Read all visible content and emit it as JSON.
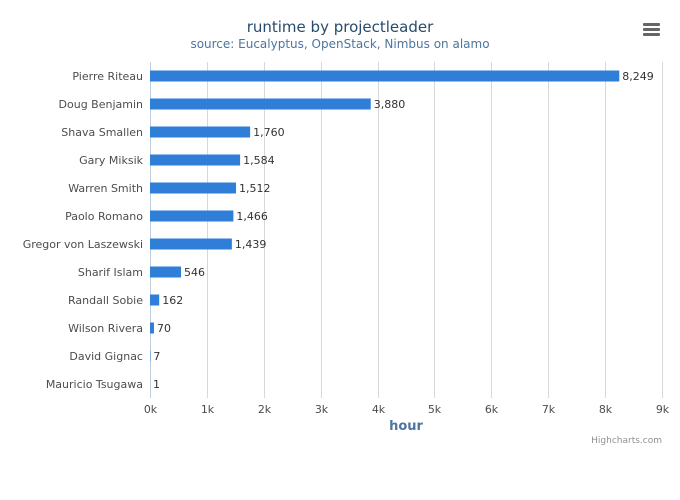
{
  "chart_data": {
    "type": "bar",
    "orientation": "horizontal",
    "title": "runtime by projectleader",
    "subtitle": "source: Eucalyptus, OpenStack, Nimbus on alamo",
    "xlabel": "hour",
    "categories": [
      "Pierre Riteau",
      "Doug Benjamin",
      "Shava Smallen",
      "Gary Miksik",
      "Warren Smith",
      "Paolo Romano",
      "Gregor von Laszewski",
      "Sharif Islam",
      "Randall Sobie",
      "Wilson Rivera",
      "David Gignac",
      "Mauricio Tsugawa"
    ],
    "values": [
      8249,
      3880,
      1760,
      1584,
      1512,
      1466,
      1439,
      546,
      162,
      70,
      7,
      1
    ],
    "data_labels": [
      "8,249",
      "3,880",
      "1,760",
      "1,584",
      "1,512",
      "1,466",
      "1,439",
      "546",
      "162",
      "70",
      "7",
      "1"
    ],
    "xlim": [
      0,
      9000
    ],
    "ticks": [
      "0k",
      "1k",
      "2k",
      "3k",
      "4k",
      "5k",
      "6k",
      "7k",
      "8k",
      "9k"
    ],
    "grid": true,
    "legend": "none",
    "bar_color": "#2f7ed8",
    "credits": "Highcharts.com"
  },
  "menu": {
    "icon": "hamburger-menu-icon"
  }
}
